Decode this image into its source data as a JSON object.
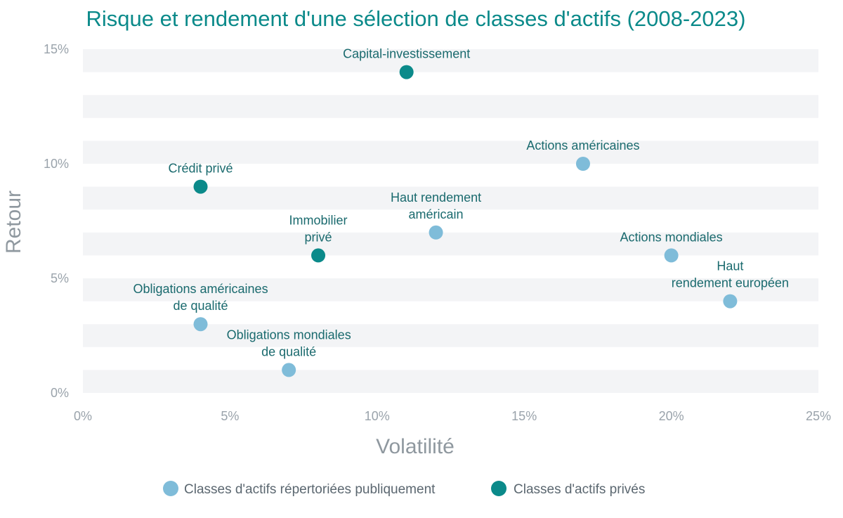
{
  "chart_data": {
    "type": "scatter",
    "title": "Risque et rendement d'une sélection de classes d'actifs (2008-2023)",
    "xlabel": "Volatilité",
    "ylabel": "Retour",
    "xlim": [
      0,
      25
    ],
    "ylim": [
      0,
      15
    ],
    "x_ticks": [
      "0%",
      "5%",
      "10%",
      "15%",
      "20%",
      "25%"
    ],
    "y_ticks": [
      "0%",
      "5%",
      "10%",
      "15%"
    ],
    "grid": "alternating horizontal bands",
    "legend_position": "bottom-center",
    "colors": {
      "public": "#7fbcd9",
      "private": "#0b8a8a"
    },
    "series": [
      {
        "name": "Classes d'actifs répertoriées publiquement",
        "color_key": "public",
        "points": [
          {
            "label": [
              "Actions américaines"
            ],
            "x": 17,
            "y": 10
          },
          {
            "label": [
              "Haut rendement",
              "américain"
            ],
            "x": 12,
            "y": 7
          },
          {
            "label": [
              "Actions mondiales"
            ],
            "x": 20,
            "y": 6
          },
          {
            "label": [
              "Haut",
              "rendement européen"
            ],
            "x": 22,
            "y": 4
          },
          {
            "label": [
              "Obligations américaines",
              "de qualité"
            ],
            "x": 4,
            "y": 3
          },
          {
            "label": [
              "Obligations mondiales",
              "de qualité"
            ],
            "x": 7,
            "y": 1
          }
        ]
      },
      {
        "name": "Classes d'actifs privés",
        "color_key": "private",
        "points": [
          {
            "label": [
              "Capital-investissement"
            ],
            "x": 11,
            "y": 14
          },
          {
            "label": [
              "Crédit privé"
            ],
            "x": 4,
            "y": 9
          },
          {
            "label": [
              "Immobilier",
              "privé"
            ],
            "x": 8,
            "y": 6
          }
        ]
      }
    ]
  }
}
